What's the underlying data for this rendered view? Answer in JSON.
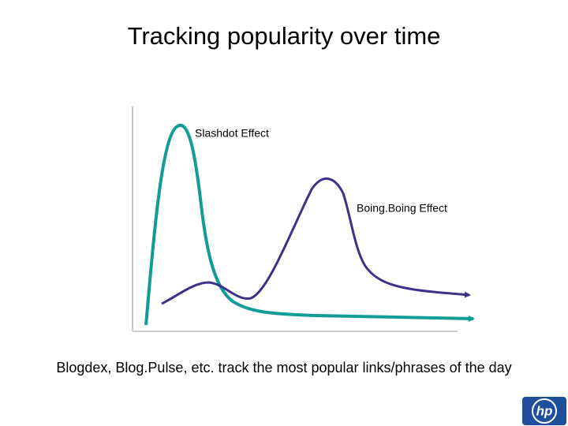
{
  "header": {
    "title": "Tracking popularity over time"
  },
  "diagram": {
    "labels": [
      "Slashdot Effect",
      "Boing.Boing Effect"
    ]
  },
  "caption": "Blogdex, Blog.Pulse, etc. track the most popular links/phrases of the day",
  "logo": "hp"
}
